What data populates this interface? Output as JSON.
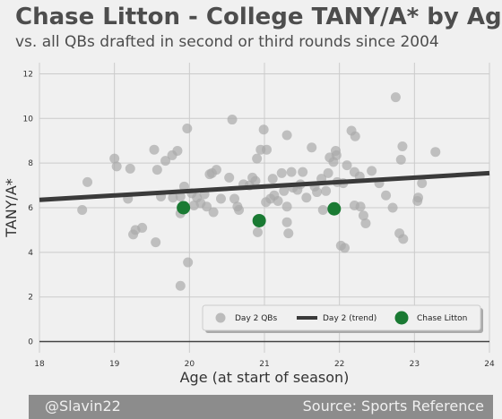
{
  "header": {
    "title": "Chase Litton - College TANY/A* by Age",
    "subtitle": "vs. all QBs drafted in second or third rounds since 2004"
  },
  "footer": {
    "handle": "@Slavin22",
    "source": "Source: Sports Reference"
  },
  "chart_data": {
    "type": "scatter",
    "xlabel": "Age (at start of season)",
    "ylabel": "TANY/A*",
    "xlim": [
      18,
      24
    ],
    "ylim": [
      -0.5,
      12.5
    ],
    "xticks": [
      18,
      19,
      20,
      21,
      22,
      23,
      24
    ],
    "yticks": [
      0,
      2,
      4,
      6,
      8,
      10,
      12
    ],
    "grid": true,
    "legend_placement": "bottom-right",
    "series": [
      {
        "name": "Day 2 QBs",
        "color": "#a9a9a9",
        "points": [
          [
            18.57,
            5.9
          ],
          [
            18.64,
            7.15
          ],
          [
            19.0,
            8.2
          ],
          [
            19.03,
            7.85
          ],
          [
            19.18,
            6.4
          ],
          [
            19.21,
            7.75
          ],
          [
            19.25,
            4.8
          ],
          [
            19.28,
            5.0
          ],
          [
            19.37,
            5.1
          ],
          [
            19.53,
            8.6
          ],
          [
            19.55,
            4.45
          ],
          [
            19.57,
            7.7
          ],
          [
            19.62,
            6.5
          ],
          [
            19.68,
            8.1
          ],
          [
            19.77,
            8.35
          ],
          [
            19.78,
            6.45
          ],
          [
            19.84,
            8.55
          ],
          [
            19.88,
            2.5
          ],
          [
            19.88,
            6.5
          ],
          [
            19.88,
            5.75
          ],
          [
            19.93,
            6.95
          ],
          [
            19.97,
            9.55
          ],
          [
            19.98,
            3.55
          ],
          [
            20.03,
            6.65
          ],
          [
            20.06,
            6.1
          ],
          [
            20.1,
            6.45
          ],
          [
            20.15,
            6.2
          ],
          [
            20.2,
            6.6
          ],
          [
            20.23,
            6.05
          ],
          [
            20.27,
            7.5
          ],
          [
            20.3,
            7.55
          ],
          [
            20.32,
            5.8
          ],
          [
            20.36,
            7.7
          ],
          [
            20.42,
            6.4
          ],
          [
            20.53,
            7.35
          ],
          [
            20.57,
            9.95
          ],
          [
            20.6,
            6.4
          ],
          [
            20.64,
            6.05
          ],
          [
            20.66,
            5.9
          ],
          [
            20.72,
            7.05
          ],
          [
            20.8,
            7.0
          ],
          [
            20.84,
            7.35
          ],
          [
            20.88,
            7.2
          ],
          [
            20.9,
            8.2
          ],
          [
            20.91,
            4.9
          ],
          [
            20.95,
            8.6
          ],
          [
            20.99,
            9.5
          ],
          [
            21.02,
            6.25
          ],
          [
            21.03,
            8.6
          ],
          [
            21.08,
            6.4
          ],
          [
            21.11,
            7.3
          ],
          [
            21.13,
            6.55
          ],
          [
            21.18,
            6.3
          ],
          [
            21.23,
            7.55
          ],
          [
            21.26,
            6.75
          ],
          [
            21.3,
            9.25
          ],
          [
            21.3,
            6.05
          ],
          [
            21.3,
            5.35
          ],
          [
            21.32,
            4.85
          ],
          [
            21.36,
            7.6
          ],
          [
            21.38,
            6.9
          ],
          [
            21.44,
            6.8
          ],
          [
            21.48,
            7.05
          ],
          [
            21.51,
            7.6
          ],
          [
            21.56,
            6.45
          ],
          [
            21.63,
            8.7
          ],
          [
            21.67,
            6.95
          ],
          [
            21.7,
            6.7
          ],
          [
            21.76,
            7.3
          ],
          [
            21.78,
            5.9
          ],
          [
            21.82,
            6.75
          ],
          [
            21.85,
            7.55
          ],
          [
            21.87,
            8.25
          ],
          [
            21.92,
            8.05
          ],
          [
            21.95,
            8.55
          ],
          [
            21.96,
            8.35
          ],
          [
            21.97,
            7.15
          ],
          [
            22.02,
            4.3
          ],
          [
            22.07,
            4.2
          ],
          [
            22.05,
            7.1
          ],
          [
            22.1,
            7.9
          ],
          [
            22.16,
            9.45
          ],
          [
            22.2,
            6.1
          ],
          [
            22.21,
            9.2
          ],
          [
            22.2,
            7.6
          ],
          [
            22.27,
            7.4
          ],
          [
            22.28,
            6.05
          ],
          [
            22.32,
            5.65
          ],
          [
            22.35,
            5.3
          ],
          [
            22.43,
            7.65
          ],
          [
            22.53,
            7.1
          ],
          [
            22.62,
            6.55
          ],
          [
            22.71,
            6.0
          ],
          [
            22.75,
            10.95
          ],
          [
            22.8,
            4.85
          ],
          [
            22.82,
            8.15
          ],
          [
            22.84,
            8.75
          ],
          [
            22.85,
            4.6
          ],
          [
            23.04,
            6.3
          ],
          [
            23.05,
            6.45
          ],
          [
            23.1,
            7.1
          ],
          [
            23.28,
            8.5
          ]
        ]
      },
      {
        "name": "Day 2 (trend)",
        "type": "line",
        "color": "#3a3a3a",
        "points": [
          [
            18,
            6.35
          ],
          [
            24,
            7.55
          ]
        ]
      },
      {
        "name": "Chase Litton",
        "color": "#1a7a33",
        "points": [
          [
            19.92,
            6.0
          ],
          [
            20.93,
            5.42
          ],
          [
            21.93,
            5.95
          ]
        ]
      }
    ]
  }
}
